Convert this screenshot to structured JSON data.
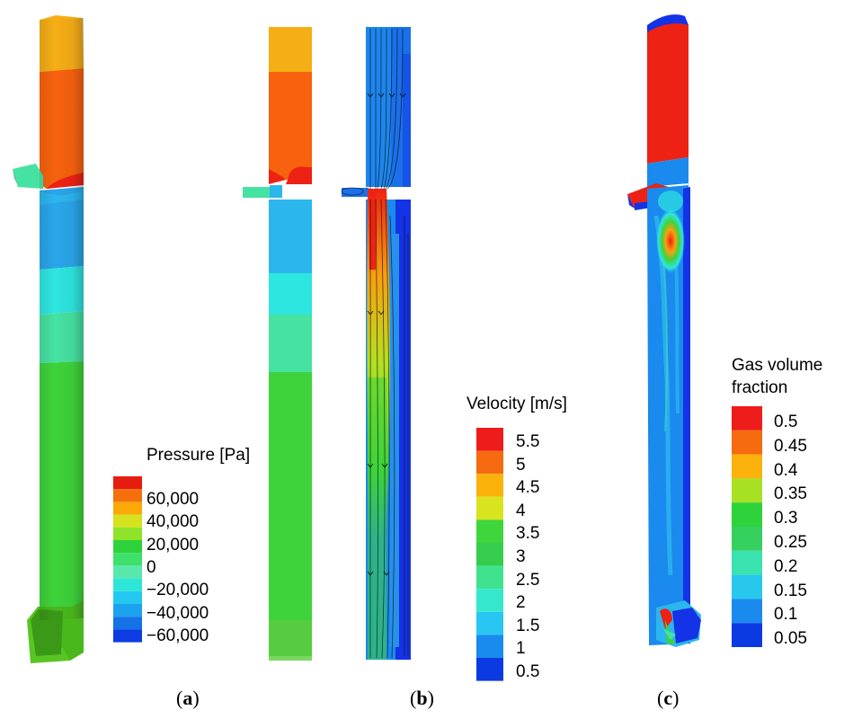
{
  "figure": {
    "panels": [
      {
        "id": "a",
        "label": "a"
      },
      {
        "id": "b",
        "label": "b"
      },
      {
        "id": "c",
        "label": "c"
      }
    ]
  },
  "legends": {
    "pressure": {
      "title": "Pressure [Pa]",
      "labels": [
        "60,000",
        "40,000",
        "20,000",
        "0",
        "−20,000",
        "−40,000",
        "−60,000"
      ],
      "colors": [
        "#e81c0e",
        "#f5700c",
        "#fba808",
        "#d6e21e",
        "#8fe328",
        "#2ed23a",
        "#3de06a",
        "#59e8ac",
        "#2ee6d8",
        "#22c8f0",
        "#1aa2ee",
        "#1472e6",
        "#0c3ce2"
      ]
    },
    "velocity": {
      "title": "Velocity [m/s]",
      "labels": [
        "5.5",
        "5",
        "4.5",
        "4",
        "3.5",
        "3",
        "2.5",
        "2",
        "1.5",
        "1",
        "0.5"
      ],
      "colors": [
        "#ee1c1a",
        "#f66a10",
        "#fbb20a",
        "#d8e41e",
        "#3ed63a",
        "#36cc4c",
        "#3fe28e",
        "#35e8cc",
        "#28c6f2",
        "#198aee",
        "#0c3ae2"
      ]
    },
    "gas_fraction": {
      "title_line1": "Gas volume",
      "title_line2": "fraction",
      "labels": [
        "0.5",
        "0.45",
        "0.4",
        "0.35",
        "0.3",
        "0.25",
        "0.2",
        "0.15",
        "0.1",
        "0.05"
      ],
      "colors": [
        "#ee1c1a",
        "#f66a10",
        "#fbb20a",
        "#a8e024",
        "#2ed23a",
        "#36d05e",
        "#3ae2b0",
        "#28c8ee",
        "#1a8aee",
        "#0c3ae2"
      ]
    }
  },
  "colors": {
    "red": "#ee2214",
    "orange": "#f8620e",
    "yellow_orange": "#f6ae16",
    "blue": "#1f78ea",
    "light_blue": "#2cb6ee",
    "cyan": "#2ee6e0",
    "teal_green": "#46e2a2",
    "green": "#3ed33a",
    "dark_blue": "#1432e6"
  }
}
